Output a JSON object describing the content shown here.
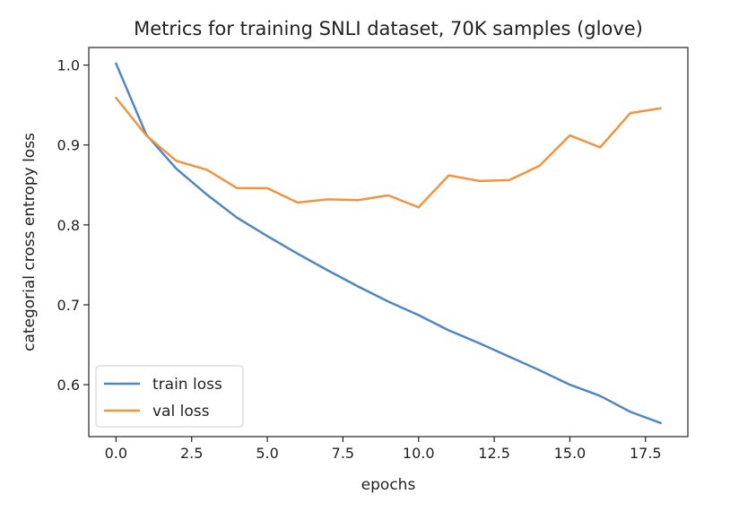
{
  "chart_data": {
    "type": "line",
    "title": "Metrics for training SNLI dataset, 70K samples (glove)",
    "xlabel": "epochs",
    "ylabel": "categorial cross entropy loss",
    "xlim": [
      -0.9,
      18.9
    ],
    "ylim": [
      0.535,
      1.022
    ],
    "x_ticks": [
      0.0,
      2.5,
      5.0,
      7.5,
      10.0,
      12.5,
      15.0,
      17.5
    ],
    "x_tick_labels": [
      "0.0",
      "2.5",
      "5.0",
      "7.5",
      "10.0",
      "12.5",
      "15.0",
      "17.5"
    ],
    "y_ticks": [
      0.6,
      0.7,
      0.8,
      0.9,
      1.0
    ],
    "y_tick_labels": [
      "0.6",
      "0.7",
      "0.8",
      "0.9",
      "1.0"
    ],
    "grid": false,
    "legend_position": "lower-left",
    "x": [
      0,
      1,
      2,
      3,
      4,
      5,
      6,
      7,
      8,
      9,
      10,
      11,
      12,
      13,
      14,
      15,
      16,
      17,
      18
    ],
    "series": [
      {
        "name": "train loss",
        "color": "#4f87c2",
        "values": [
          1.002,
          0.913,
          0.87,
          0.838,
          0.809,
          0.786,
          0.764,
          0.743,
          0.723,
          0.704,
          0.687,
          0.668,
          0.652,
          0.635,
          0.618,
          0.6,
          0.586,
          0.566,
          0.552
        ]
      },
      {
        "name": "val loss",
        "color": "#f0943f",
        "values": [
          0.959,
          0.912,
          0.88,
          0.869,
          0.846,
          0.846,
          0.828,
          0.832,
          0.831,
          0.837,
          0.822,
          0.862,
          0.855,
          0.856,
          0.874,
          0.912,
          0.897,
          0.94,
          0.946
        ]
      }
    ]
  }
}
